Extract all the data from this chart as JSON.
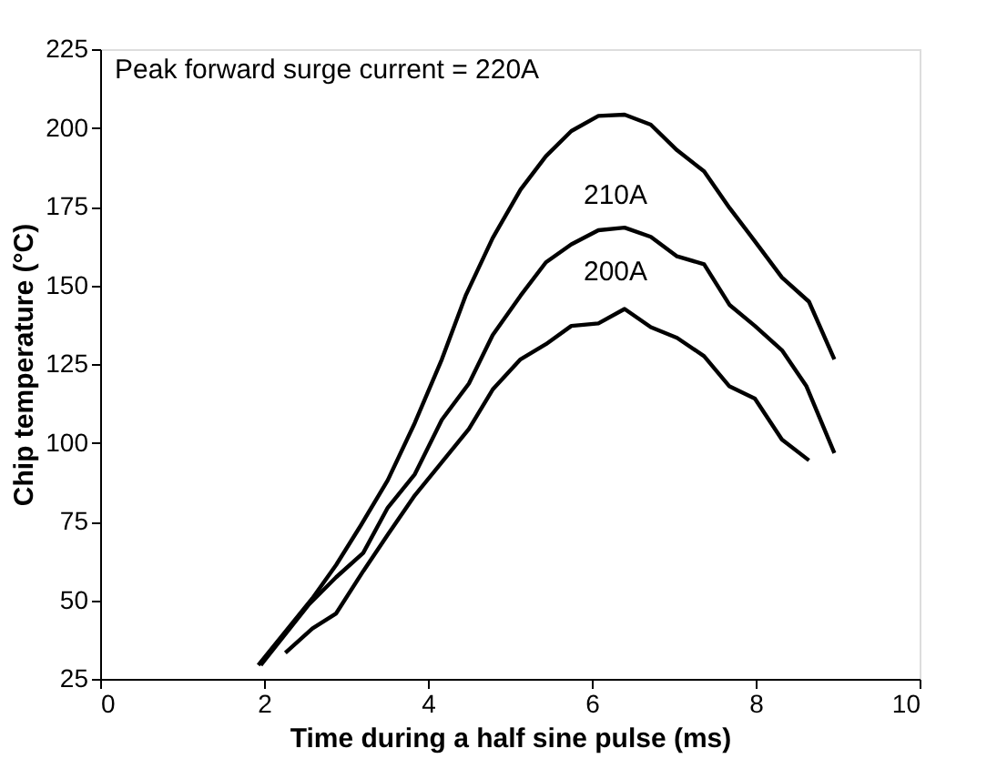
{
  "chart_data": {
    "type": "line",
    "xlabel": "Time during a half sine pulse (ms)",
    "ylabel": "Chip temperature (°C)",
    "xlim": [
      0,
      10
    ],
    "xticks": [
      0,
      2,
      4,
      6,
      8,
      10
    ],
    "ylim": [
      25,
      225
    ],
    "yticks": [
      25,
      50,
      75,
      100,
      125,
      150,
      175,
      200,
      225
    ],
    "grid": false,
    "marker": "none",
    "line_style": "solid",
    "annotations": [
      "Peak forward surge current = 220A",
      "210A",
      "200A"
    ],
    "series": [
      {
        "color": "#000000",
        "x": [
          1.93,
          2.59,
          2.88,
          3.18,
          3.51,
          3.84,
          4.17,
          4.46,
          4.79,
          5.13,
          5.44,
          5.75,
          6.08,
          6.4,
          6.72,
          7.04,
          7.37,
          7.68,
          7.99,
          8.32,
          8.65,
          8.96
        ],
        "values": [
          29.4,
          50.6,
          61.2,
          73.7,
          88.1,
          106.3,
          126.5,
          146.7,
          165.0,
          180.4,
          191.0,
          199.0,
          203.8,
          204.2,
          201.0,
          192.9,
          186.2,
          174.6,
          164.0,
          152.5,
          144.8,
          126.5
        ]
      },
      {
        "color": "#000000",
        "x": [
          1.96,
          2.55,
          2.88,
          3.21,
          3.51,
          3.84,
          4.17,
          4.5,
          4.79,
          5.13,
          5.44,
          5.75,
          6.08,
          6.4,
          6.72,
          7.04,
          7.37,
          7.68,
          7.99,
          8.32,
          8.62,
          8.96
        ],
        "values": [
          29.4,
          48.7,
          57.3,
          65.0,
          79.4,
          90.0,
          107.3,
          118.8,
          134.2,
          146.7,
          157.3,
          163.0,
          167.5,
          168.3,
          165.4,
          159.2,
          156.7,
          143.8,
          137.1,
          129.4,
          117.9,
          96.7
        ]
      },
      {
        "color": "#000000",
        "x": [
          2.26,
          2.59,
          2.88,
          3.21,
          3.51,
          3.84,
          4.17,
          4.5,
          4.79,
          5.13,
          5.44,
          5.75,
          6.08,
          6.4,
          6.72,
          7.04,
          7.37,
          7.68,
          7.99,
          8.32,
          8.65
        ],
        "values": [
          33.3,
          41.0,
          45.8,
          59.2,
          70.8,
          83.3,
          93.8,
          104.4,
          116.9,
          126.5,
          131.3,
          137.1,
          137.9,
          142.5,
          136.7,
          133.3,
          127.5,
          117.9,
          114.0,
          101.0,
          94.4
        ]
      }
    ]
  }
}
